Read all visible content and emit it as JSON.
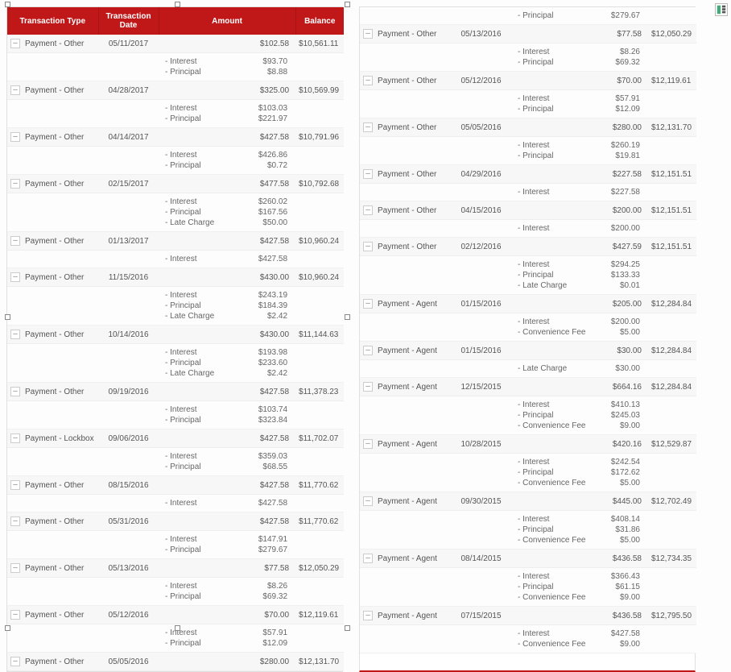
{
  "headers": {
    "toggle": "",
    "type": "Transaction Type",
    "date": "Transaction Date",
    "amount": "Amount",
    "balance": "Balance"
  },
  "toggle_glyph": "–",
  "left": [
    {
      "type": "Payment - Other",
      "date": "05/11/2017",
      "amount": "$102.58",
      "balance": "$10,561.11",
      "details": [
        [
          "- Interest",
          "$93.70"
        ],
        [
          "- Principal",
          "$8.88"
        ]
      ]
    },
    {
      "type": "Payment - Other",
      "date": "04/28/2017",
      "amount": "$325.00",
      "balance": "$10,569.99",
      "details": [
        [
          "- Interest",
          "$103.03"
        ],
        [
          "- Principal",
          "$221.97"
        ]
      ]
    },
    {
      "type": "Payment - Other",
      "date": "04/14/2017",
      "amount": "$427.58",
      "balance": "$10,791.96",
      "details": [
        [
          "- Interest",
          "$426.86"
        ],
        [
          "- Principal",
          "$0.72"
        ]
      ]
    },
    {
      "type": "Payment - Other",
      "date": "02/15/2017",
      "amount": "$477.58",
      "balance": "$10,792.68",
      "details": [
        [
          "- Interest",
          "$260.02"
        ],
        [
          "- Principal",
          "$167.56"
        ],
        [
          "- Late Charge",
          "$50.00"
        ]
      ]
    },
    {
      "type": "Payment - Other",
      "date": "01/13/2017",
      "amount": "$427.58",
      "balance": "$10,960.24",
      "details": [
        [
          "- Interest",
          "$427.58"
        ]
      ]
    },
    {
      "type": "Payment - Other",
      "date": "11/15/2016",
      "amount": "$430.00",
      "balance": "$10,960.24",
      "details": [
        [
          "- Interest",
          "$243.19"
        ],
        [
          "- Principal",
          "$184.39"
        ],
        [
          "- Late Charge",
          "$2.42"
        ]
      ]
    },
    {
      "type": "Payment - Other",
      "date": "10/14/2016",
      "amount": "$430.00",
      "balance": "$11,144.63",
      "details": [
        [
          "- Interest",
          "$193.98"
        ],
        [
          "- Principal",
          "$233.60"
        ],
        [
          "- Late Charge",
          "$2.42"
        ]
      ]
    },
    {
      "type": "Payment - Other",
      "date": "09/19/2016",
      "amount": "$427.58",
      "balance": "$11,378.23",
      "details": [
        [
          "- Interest",
          "$103.74"
        ],
        [
          "- Principal",
          "$323.84"
        ]
      ]
    },
    {
      "type": "Payment - Lockbox",
      "date": "09/06/2016",
      "amount": "$427.58",
      "balance": "$11,702.07",
      "details": [
        [
          "- Interest",
          "$359.03"
        ],
        [
          "- Principal",
          "$68.55"
        ]
      ]
    },
    {
      "type": "Payment - Other",
      "date": "08/15/2016",
      "amount": "$427.58",
      "balance": "$11,770.62",
      "details": [
        [
          "- Interest",
          "$427.58"
        ]
      ]
    },
    {
      "type": "Payment - Other",
      "date": "05/31/2016",
      "amount": "$427.58",
      "balance": "$11,770.62",
      "details": [
        [
          "- Interest",
          "$147.91"
        ],
        [
          "- Principal",
          "$279.67"
        ]
      ]
    },
    {
      "type": "Payment - Other",
      "date": "05/13/2016",
      "amount": "$77.58",
      "balance": "$12,050.29",
      "details": [
        [
          "- Interest",
          "$8.26"
        ],
        [
          "- Principal",
          "$69.32"
        ]
      ]
    },
    {
      "type": "Payment - Other",
      "date": "05/12/2016",
      "amount": "$70.00",
      "balance": "$12,119.61",
      "details": [
        [
          "- Interest",
          "$57.91"
        ],
        [
          "- Principal",
          "$12.09"
        ]
      ]
    },
    {
      "type": "Payment - Other",
      "date": "05/05/2016",
      "amount": "$280.00",
      "balance": "$12,131.70",
      "details": []
    }
  ],
  "right_initial_detail": [
    [
      "- Principal",
      "$279.67"
    ]
  ],
  "right": [
    {
      "type": "Payment - Other",
      "date": "05/13/2016",
      "amount": "$77.58",
      "balance": "$12,050.29",
      "details": [
        [
          "- Interest",
          "$8.26"
        ],
        [
          "- Principal",
          "$69.32"
        ]
      ]
    },
    {
      "type": "Payment - Other",
      "date": "05/12/2016",
      "amount": "$70.00",
      "balance": "$12,119.61",
      "details": [
        [
          "- Interest",
          "$57.91"
        ],
        [
          "- Principal",
          "$12.09"
        ]
      ]
    },
    {
      "type": "Payment - Other",
      "date": "05/05/2016",
      "amount": "$280.00",
      "balance": "$12,131.70",
      "details": [
        [
          "- Interest",
          "$260.19"
        ],
        [
          "- Principal",
          "$19.81"
        ]
      ]
    },
    {
      "type": "Payment - Other",
      "date": "04/29/2016",
      "amount": "$227.58",
      "balance": "$12,151.51",
      "details": [
        [
          "- Interest",
          "$227.58"
        ]
      ]
    },
    {
      "type": "Payment - Other",
      "date": "04/15/2016",
      "amount": "$200.00",
      "balance": "$12,151.51",
      "details": [
        [
          "- Interest",
          "$200.00"
        ]
      ]
    },
    {
      "type": "Payment - Other",
      "date": "02/12/2016",
      "amount": "$427.59",
      "balance": "$12,151.51",
      "details": [
        [
          "- Interest",
          "$294.25"
        ],
        [
          "- Principal",
          "$133.33"
        ],
        [
          "- Late Charge",
          "$0.01"
        ]
      ]
    },
    {
      "type": "Payment - Agent",
      "date": "01/15/2016",
      "amount": "$205.00",
      "balance": "$12,284.84",
      "details": [
        [
          "- Interest",
          "$200.00"
        ],
        [
          "- Convenience Fee",
          "$5.00"
        ]
      ]
    },
    {
      "type": "Payment - Agent",
      "date": "01/15/2016",
      "amount": "$30.00",
      "balance": "$12,284.84",
      "details": [
        [
          "- Late Charge",
          "$30.00"
        ]
      ]
    },
    {
      "type": "Payment - Agent",
      "date": "12/15/2015",
      "amount": "$664.16",
      "balance": "$12,284.84",
      "details": [
        [
          "- Interest",
          "$410.13"
        ],
        [
          "- Principal",
          "$245.03"
        ],
        [
          "- Convenience Fee",
          "$9.00"
        ]
      ]
    },
    {
      "type": "Payment - Agent",
      "date": "10/28/2015",
      "amount": "$420.16",
      "balance": "$12,529.87",
      "details": [
        [
          "- Interest",
          "$242.54"
        ],
        [
          "- Principal",
          "$172.62"
        ],
        [
          "- Convenience Fee",
          "$5.00"
        ]
      ]
    },
    {
      "type": "Payment - Agent",
      "date": "09/30/2015",
      "amount": "$445.00",
      "balance": "$12,702.49",
      "details": [
        [
          "- Interest",
          "$408.14"
        ],
        [
          "- Principal",
          "$31.86"
        ],
        [
          "- Convenience Fee",
          "$5.00"
        ]
      ]
    },
    {
      "type": "Payment - Agent",
      "date": "08/14/2015",
      "amount": "$436.58",
      "balance": "$12,734.35",
      "details": [
        [
          "- Interest",
          "$366.43"
        ],
        [
          "- Principal",
          "$61.15"
        ],
        [
          "- Convenience Fee",
          "$9.00"
        ]
      ]
    },
    {
      "type": "Payment - Agent",
      "date": "07/15/2015",
      "amount": "$436.58",
      "balance": "$12,795.50",
      "details": [
        [
          "- Interest",
          "$427.58"
        ],
        [
          "- Convenience Fee",
          "$9.00"
        ]
      ]
    }
  ],
  "colors": {
    "header_bg": "#c01818",
    "header_text": "#ffffff",
    "row_bg": "#f7f7f7",
    "detail_bg": "#fdfdfd",
    "border": "#e0e0e0"
  }
}
